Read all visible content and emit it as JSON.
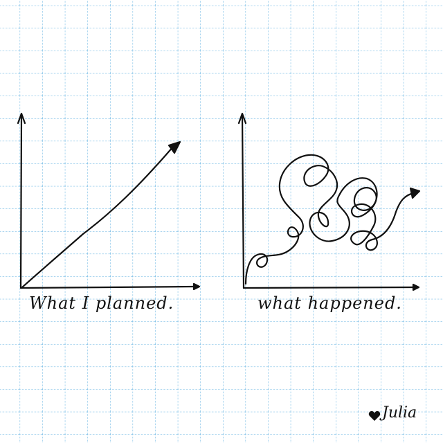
{
  "colors": {
    "paper": "#ffffff",
    "grid": "#5aaee0",
    "ink": "#111111"
  },
  "panels": {
    "planned": {
      "caption": "What I planned."
    },
    "happened": {
      "caption": "what happened."
    }
  },
  "signature": {
    "text": "Julia",
    "icon": "heart-icon"
  }
}
